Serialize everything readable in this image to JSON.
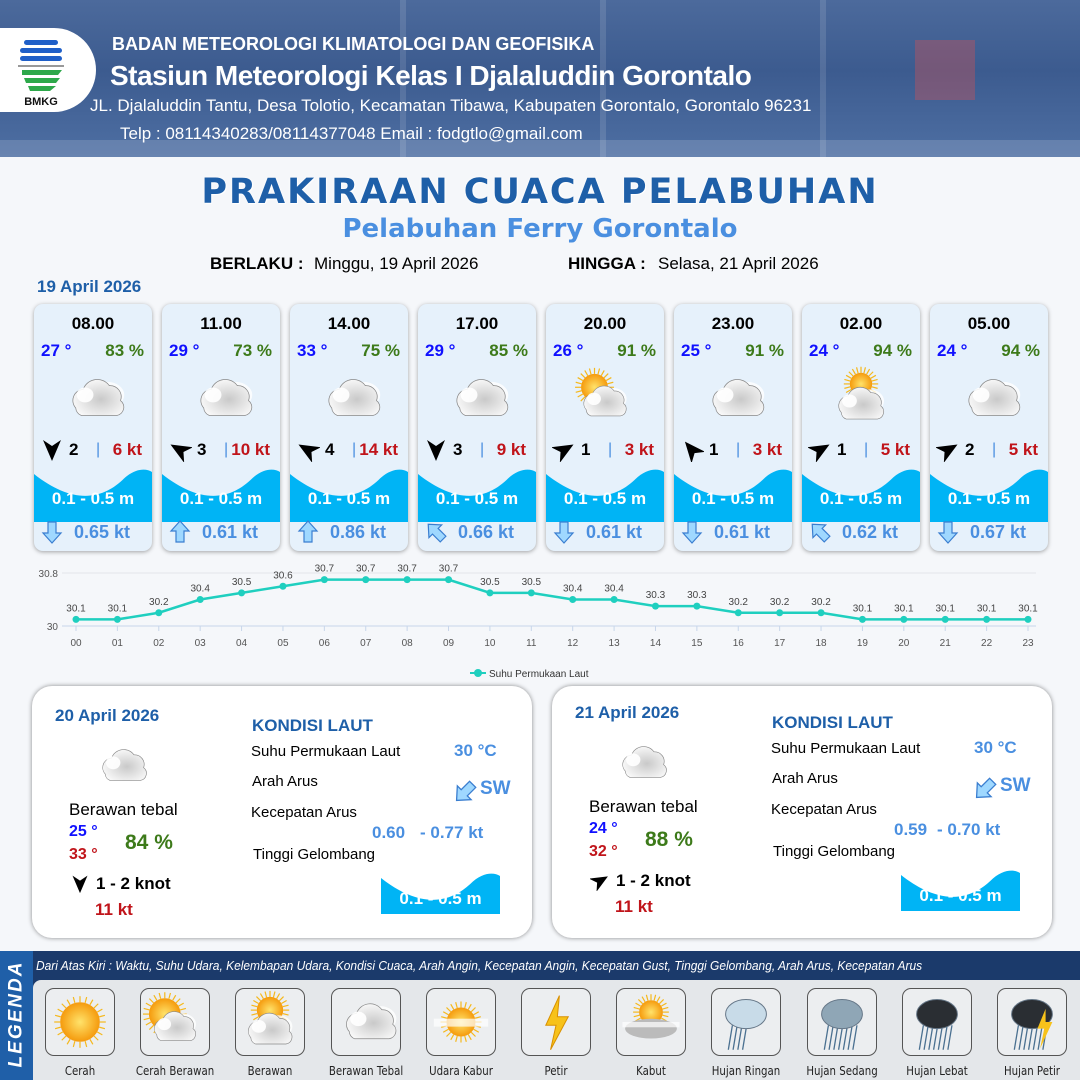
{
  "header": {
    "org": "BADAN METEOROLOGI KLIMATOLOGI DAN GEOFISIKA",
    "station": "Stasiun Meteorologi Kelas I Djalaluddin Gorontalo",
    "address": "JL. Djalaluddin Tantu, Desa Tolotio, Kecamatan Tibawa, Kabupaten Gorontalo, Gorontalo 96231",
    "contact": "Telp : 08114340283/08114377048 Email : fodgtlo@gmail.com",
    "logo_text": "BMKG"
  },
  "title": "PRAKIRAAN CUACA PELABUHAN",
  "subtitle": "Pelabuhan Ferry Gorontalo",
  "validity": {
    "from_label": "BERLAKU :",
    "from": "Minggu, 19 April 2026",
    "to_label": "HINGGA :",
    "to": "Selasa, 21 April 2026"
  },
  "day1_date": "19 April 2026",
  "cards": [
    {
      "time": "08.00",
      "temp": "27 °",
      "hum": "83 %",
      "weather": "Berawan Tebal",
      "wind_dir_deg": 0,
      "wind": "2",
      "gust": "6 kt",
      "wave": "0.1 - 0.5 m",
      "current_dir": "down",
      "current": "0.65 kt"
    },
    {
      "time": "11.00",
      "temp": "29 °",
      "hum": "73 %",
      "weather": "Berawan Tebal",
      "wind_dir_deg": 120,
      "wind": "3",
      "gust": "10 kt",
      "wave": "0.1 - 0.5 m",
      "current_dir": "up",
      "current": "0.61 kt"
    },
    {
      "time": "14.00",
      "temp": "33 °",
      "hum": "75 %",
      "weather": "Berawan Tebal",
      "wind_dir_deg": 120,
      "wind": "4",
      "gust": "14 kt",
      "wave": "0.1 - 0.5 m",
      "current_dir": "up",
      "current": "0.86 kt"
    },
    {
      "time": "17.00",
      "temp": "29 °",
      "hum": "85 %",
      "weather": "Berawan Tebal",
      "wind_dir_deg": 0,
      "wind": "3",
      "gust": "9 kt",
      "wave": "0.1 - 0.5 m",
      "current_dir": "up-left",
      "current": "0.66 kt"
    },
    {
      "time": "20.00",
      "temp": "26 °",
      "hum": "91 %",
      "weather": "Cerah Berawan",
      "wind_dir_deg": 240,
      "wind": "1",
      "gust": "3 kt",
      "wave": "0.1 - 0.5 m",
      "current_dir": "down",
      "current": "0.61 kt"
    },
    {
      "time": "23.00",
      "temp": "25 °",
      "hum": "91 %",
      "weather": "Berawan Tebal",
      "wind_dir_deg": 140,
      "wind": "1",
      "gust": "3 kt",
      "wave": "0.1 - 0.5 m",
      "current_dir": "down",
      "current": "0.61 kt"
    },
    {
      "time": "02.00",
      "temp": "24 °",
      "hum": "94 %",
      "weather": "Berawan",
      "wind_dir_deg": 240,
      "wind": "1",
      "gust": "5 kt",
      "wave": "0.1 - 0.5 m",
      "current_dir": "up-left",
      "current": "0.62 kt"
    },
    {
      "time": "05.00",
      "temp": "24 °",
      "hum": "94 %",
      "weather": "Berawan Tebal",
      "wind_dir_deg": 240,
      "wind": "2",
      "gust": "5 kt",
      "wave": "0.1 - 0.5 m",
      "current_dir": "down",
      "current": "0.67 kt"
    }
  ],
  "chart_data": {
    "type": "line",
    "categories": [
      "00",
      "01",
      "02",
      "03",
      "04",
      "05",
      "06",
      "07",
      "08",
      "09",
      "10",
      "11",
      "12",
      "13",
      "14",
      "15",
      "16",
      "17",
      "18",
      "19",
      "20",
      "21",
      "22",
      "23"
    ],
    "series": [
      {
        "name": "Suhu Permukaan Laut",
        "values": [
          30.1,
          30.1,
          30.2,
          30.4,
          30.5,
          30.6,
          30.7,
          30.7,
          30.7,
          30.7,
          30.5,
          30.5,
          30.4,
          30.4,
          30.3,
          30.3,
          30.2,
          30.2,
          30.2,
          30.1,
          30.1,
          30.1,
          30.1,
          30.1
        ]
      }
    ],
    "ylim": [
      30,
      30.8
    ],
    "yticks": [
      "30",
      "30.8"
    ],
    "color": "#1fcfbf",
    "legend": "bottom",
    "grid": true
  },
  "days": [
    {
      "date": "20 April 2026",
      "weather": "Berawan tebal",
      "tmin": "25 °",
      "tmax": "33 °",
      "hum": "84 %",
      "wind_dir_deg": 0,
      "wind": "1  - 2 knot",
      "gust": "11 kt",
      "sea_title": "KONDISI LAUT",
      "sst_label": "Suhu Permukaan Laut",
      "sst": "30 °C",
      "dir_label": "Arah Arus",
      "dir": "SW",
      "spd_label": "Kecepatan Arus",
      "spd_min": "0.60",
      "spd_max": "- 0.77 kt",
      "wave_label": "Tinggi Gelombang",
      "wave": "0.1 - 0.5 m"
    },
    {
      "date": "21 April 2026",
      "weather": "Berawan tebal",
      "tmin": "24 °",
      "tmax": "32 °",
      "hum": "88 %",
      "wind_dir_deg": 240,
      "wind": "1  - 2 knot",
      "gust": "11 kt",
      "sea_title": "KONDISI LAUT",
      "sst_label": "Suhu Permukaan Laut",
      "sst": "30 °C",
      "dir_label": "Arah Arus",
      "dir": "SW",
      "spd_label": "Kecepatan Arus",
      "spd_min": "0.59",
      "spd_max": "- 0.70 kt",
      "wave_label": "Tinggi Gelombang",
      "wave": "0.1 - 0.5 m"
    }
  ],
  "legend": {
    "side_label": "LEGENDA",
    "description": "Dari Atas Kiri : Waktu, Suhu Udara, Kelembapan Udara, Kondisi Cuaca, Arah Angin, Kecepatan Angin, Kecepatan Gust, Tinggi Gelombang, Arah Arus, Kecepatan Arus",
    "items": [
      "Cerah",
      "Cerah Berawan",
      "Berawan",
      "Berawan Tebal",
      "Udara Kabur",
      "Petir",
      "Kabut",
      "Hujan Ringan",
      "Hujan Sedang",
      "Hujan Lebat",
      "Hujan Petir"
    ]
  },
  "colors": {
    "title": "#1e5fa8",
    "temp": "#1010ff",
    "humidity": "#3d7a1a",
    "gust": "#c0141a",
    "wave": "#00b4f5",
    "current": "#4a8fe0"
  }
}
